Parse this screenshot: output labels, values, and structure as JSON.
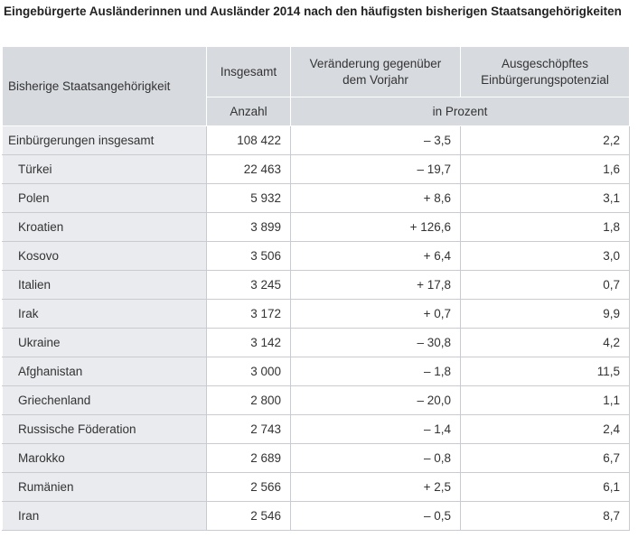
{
  "title": "Eingebürgerte Ausländerinnen und Ausländer 2014 nach den häufigsten bisherigen Staatsangehörigkeiten",
  "header": {
    "col1": "Bisherige Staatsangehörigkeit",
    "col2": "Insgesamt",
    "col3": "Veränderung gegenüber dem Vorjahr",
    "col4": "Ausgeschöpftes Einbürgerungspotenzial",
    "unit_count": "Anzahl",
    "unit_percent": "in Prozent"
  },
  "rows": [
    {
      "name": "Einbürgerungen insgesamt",
      "total": "108 422",
      "change": "– 3,5",
      "potential": "2,2"
    },
    {
      "name": "Türkei",
      "total": "22 463",
      "change": "– 19,7",
      "potential": "1,6"
    },
    {
      "name": "Polen",
      "total": "5 932",
      "change": "+ 8,6",
      "potential": "3,1"
    },
    {
      "name": "Kroatien",
      "total": "3 899",
      "change": "+ 126,6",
      "potential": "1,8"
    },
    {
      "name": "Kosovo",
      "total": "3 506",
      "change": "+ 6,4",
      "potential": "3,0"
    },
    {
      "name": "Italien",
      "total": "3 245",
      "change": "+ 17,8",
      "potential": "0,7"
    },
    {
      "name": "Irak",
      "total": "3 172",
      "change": "+ 0,7",
      "potential": "9,9"
    },
    {
      "name": "Ukraine",
      "total": "3 142",
      "change": "– 30,8",
      "potential": "4,2"
    },
    {
      "name": "Afghanistan",
      "total": "3 000",
      "change": "– 1,8",
      "potential": "11,5"
    },
    {
      "name": "Griechenland",
      "total": "2 800",
      "change": "– 20,0",
      "potential": "1,1"
    },
    {
      "name": "Russische Föderation",
      "total": "2 743",
      "change": "– 1,4",
      "potential": "2,4"
    },
    {
      "name": "Marokko",
      "total": "2 689",
      "change": "– 0,8",
      "potential": "6,7"
    },
    {
      "name": "Rumänien",
      "total": "2 566",
      "change": "+ 2,5",
      "potential": "6,1"
    },
    {
      "name": "Iran",
      "total": "2 546",
      "change": "– 0,5",
      "potential": "8,7"
    }
  ]
}
